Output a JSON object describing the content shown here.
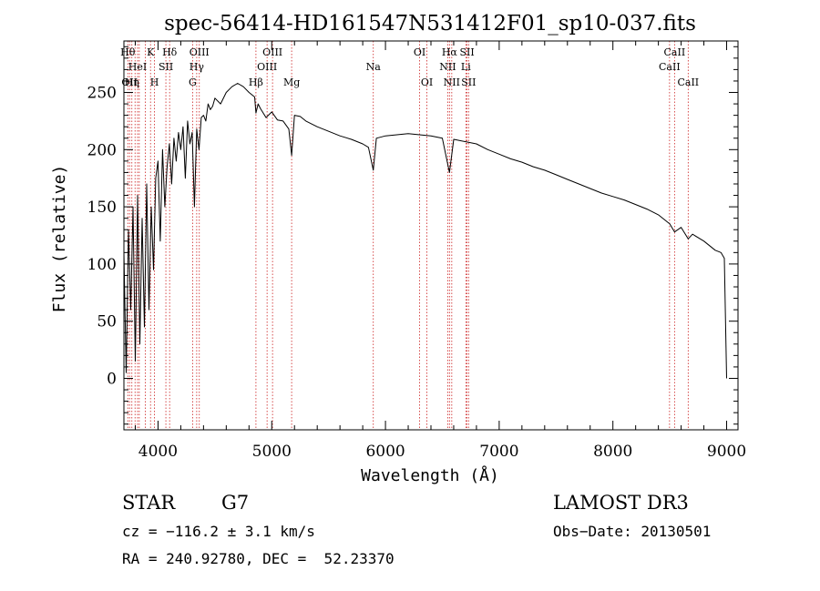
{
  "chart_data": {
    "type": "line",
    "title": "spec-56414-HD161547N531412F01_sp10-037.fits",
    "xlabel": "Wavelength (Å)",
    "ylabel": "Flux (relative)",
    "xlim": [
      3700,
      9100
    ],
    "ylim": [
      -45,
      295
    ],
    "x_ticks": [
      4000,
      5000,
      6000,
      7000,
      8000,
      9000
    ],
    "y_ticks": [
      0,
      50,
      100,
      150,
      200,
      250
    ],
    "series": [
      {
        "name": "flux",
        "x": [
          3700,
          3720,
          3740,
          3760,
          3780,
          3800,
          3820,
          3840,
          3860,
          3880,
          3900,
          3920,
          3940,
          3960,
          3980,
          4000,
          4020,
          4040,
          4060,
          4080,
          4100,
          4120,
          4140,
          4160,
          4180,
          4200,
          4220,
          4240,
          4260,
          4280,
          4300,
          4320,
          4340,
          4360,
          4380,
          4400,
          4420,
          4440,
          4460,
          4480,
          4500,
          4550,
          4600,
          4650,
          4700,
          4750,
          4800,
          4850,
          4861,
          4880,
          4900,
          4950,
          5000,
          5050,
          5100,
          5150,
          5175,
          5200,
          5250,
          5300,
          5400,
          5500,
          5600,
          5700,
          5800,
          5850,
          5893,
          5920,
          6000,
          6100,
          6200,
          6300,
          6400,
          6500,
          6563,
          6600,
          6700,
          6800,
          6900,
          7000,
          7100,
          7200,
          7300,
          7400,
          7500,
          7600,
          7700,
          7800,
          7900,
          8000,
          8100,
          8200,
          8300,
          8400,
          8500,
          8542,
          8600,
          8662,
          8700,
          8800,
          8900,
          8950,
          8980,
          9000
        ],
        "y": [
          110,
          5,
          130,
          60,
          150,
          15,
          160,
          30,
          140,
          45,
          170,
          60,
          150,
          95,
          175,
          190,
          120,
          200,
          150,
          185,
          205,
          170,
          210,
          190,
          215,
          200,
          220,
          175,
          225,
          205,
          215,
          150,
          218,
          200,
          228,
          230,
          225,
          240,
          235,
          238,
          245,
          240,
          250,
          255,
          258,
          255,
          250,
          246,
          232,
          240,
          236,
          228,
          233,
          226,
          225,
          218,
          195,
          230,
          229,
          225,
          220,
          216,
          212,
          209,
          205,
          202,
          182,
          210,
          212,
          213,
          214,
          213,
          212,
          210,
          180,
          209,
          207,
          205,
          200,
          196,
          192,
          189,
          185,
          182,
          178,
          174,
          170,
          166,
          162,
          159,
          156,
          152,
          148,
          143,
          135,
          128,
          132,
          122,
          126,
          120,
          112,
          110,
          105,
          0
        ]
      }
    ],
    "lines": [
      {
        "wl": 3734,
        "labels": [
          {
            "text": "Hθ",
            "row": 0
          }
        ]
      },
      {
        "wl": 3750,
        "labels": [
          {
            "text": "OII",
            "row": 2
          }
        ]
      },
      {
        "wl": 3770,
        "labels": [
          {
            "text": "Hη",
            "row": 2
          }
        ]
      },
      {
        "wl": 3798,
        "labels": []
      },
      {
        "wl": 3820,
        "labels": [
          {
            "text": "HeI",
            "row": 1
          }
        ]
      },
      {
        "wl": 3835,
        "labels": []
      },
      {
        "wl": 3889,
        "labels": []
      },
      {
        "wl": 3934,
        "labels": [
          {
            "text": "K",
            "row": 0
          }
        ]
      },
      {
        "wl": 3969,
        "labels": [
          {
            "text": "H",
            "row": 2
          }
        ]
      },
      {
        "wl": 4069,
        "labels": [
          {
            "text": "SII",
            "row": 1
          }
        ]
      },
      {
        "wl": 4102,
        "labels": [
          {
            "text": "Hδ",
            "row": 0
          }
        ]
      },
      {
        "wl": 4304,
        "labels": [
          {
            "text": "G",
            "row": 2
          }
        ]
      },
      {
        "wl": 4340,
        "labels": [
          {
            "text": "Hγ",
            "row": 1
          }
        ]
      },
      {
        "wl": 4363,
        "labels": [
          {
            "text": "OIII",
            "row": 0
          }
        ]
      },
      {
        "wl": 4861,
        "labels": [
          {
            "text": "Hβ",
            "row": 2
          }
        ]
      },
      {
        "wl": 4959,
        "labels": [
          {
            "text": "OIII",
            "row": 1
          }
        ]
      },
      {
        "wl": 5007,
        "labels": [
          {
            "text": "OIII",
            "row": 0
          }
        ]
      },
      {
        "wl": 5175,
        "labels": [
          {
            "text": "Mg",
            "row": 2
          }
        ]
      },
      {
        "wl": 5893,
        "labels": [
          {
            "text": "Na",
            "row": 1
          }
        ]
      },
      {
        "wl": 6300,
        "labels": [
          {
            "text": "OI",
            "row": 0
          }
        ]
      },
      {
        "wl": 6364,
        "labels": [
          {
            "text": "OI",
            "row": 2
          }
        ]
      },
      {
        "wl": 6548,
        "labels": [
          {
            "text": "NII",
            "row": 1
          }
        ]
      },
      {
        "wl": 6563,
        "labels": [
          {
            "text": "Hα",
            "row": 0
          }
        ]
      },
      {
        "wl": 6583,
        "labels": [
          {
            "text": "NII",
            "row": 2
          }
        ]
      },
      {
        "wl": 6707,
        "labels": [
          {
            "text": "Li",
            "row": 1
          }
        ]
      },
      {
        "wl": 6717,
        "labels": [
          {
            "text": "SII",
            "row": 0
          }
        ]
      },
      {
        "wl": 6731,
        "labels": [
          {
            "text": "SII",
            "row": 2
          }
        ]
      },
      {
        "wl": 8498,
        "labels": [
          {
            "text": "CaII",
            "row": 1
          }
        ]
      },
      {
        "wl": 8542,
        "labels": [
          {
            "text": "CaII",
            "row": 0
          }
        ]
      },
      {
        "wl": 8662,
        "labels": [
          {
            "text": "CaII",
            "row": 2
          }
        ]
      }
    ],
    "line_color": "#cc2222"
  },
  "footer": {
    "object_type": "STAR",
    "subclass": "G7",
    "survey": "LAMOST DR3",
    "cz": "cz = −116.2 ± 3.1 km/s",
    "obs_date": "Obs−Date: 20130501",
    "coords": "RA = 240.92780, DEC =  52.23370"
  }
}
